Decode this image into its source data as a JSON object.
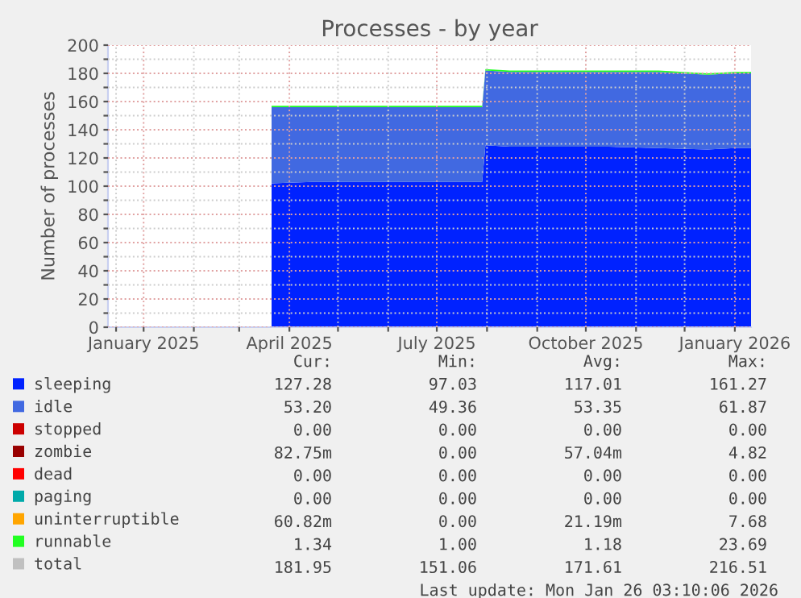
{
  "chart_data": {
    "type": "area",
    "stacked": true,
    "title": "Processes - by year",
    "ylabel": "Number of processes",
    "x": [
      "2025-03-21",
      "2025-04-15",
      "2025-05-15",
      "2025-06-15",
      "2025-07-15",
      "2025-07-29",
      "2025-07-31",
      "2025-08-15",
      "2025-09-15",
      "2025-10-15",
      "2025-11-15",
      "2025-12-15",
      "2026-01-01",
      "2026-01-11"
    ],
    "series": [
      {
        "name": "sleeping",
        "color": "#0022ff",
        "values": [
          102,
          103,
          103,
          103,
          103,
          103,
          129,
          128,
          128,
          128,
          127,
          126,
          127,
          127
        ]
      },
      {
        "name": "idle",
        "color": "#4169e1",
        "values": [
          54,
          53,
          53,
          53,
          53,
          53,
          53,
          53,
          53,
          53,
          54,
          53,
          53,
          53
        ]
      },
      {
        "name": "stopped",
        "color": "#cc0000",
        "values": [
          null,
          null,
          null,
          null,
          null,
          null,
          null,
          null,
          null,
          null,
          null,
          null,
          null,
          null
        ]
      },
      {
        "name": "zombie",
        "color": "#990000",
        "values": [
          null,
          null,
          null,
          null,
          null,
          null,
          null,
          null,
          null,
          null,
          null,
          null,
          null,
          null
        ]
      },
      {
        "name": "dead",
        "color": "#ff0000",
        "values": [
          null,
          null,
          null,
          null,
          null,
          null,
          null,
          null,
          null,
          null,
          null,
          null,
          null,
          null
        ]
      },
      {
        "name": "paging",
        "color": "#00aaaa",
        "values": [
          null,
          null,
          null,
          null,
          null,
          null,
          null,
          null,
          null,
          null,
          null,
          null,
          null,
          null
        ]
      },
      {
        "name": "uninterruptible",
        "color": "#ffa500",
        "values": [
          null,
          null,
          null,
          null,
          null,
          null,
          null,
          null,
          null,
          null,
          null,
          null,
          null,
          null
        ]
      },
      {
        "name": "runnable",
        "color": "#22ff22",
        "values": [
          1,
          1,
          1,
          1,
          1,
          1,
          1,
          1,
          1,
          1,
          1,
          1,
          1,
          1
        ]
      },
      {
        "name": "total",
        "color": "#c0c0c0",
        "values": [
          null,
          null,
          null,
          null,
          null,
          null,
          null,
          null,
          null,
          null,
          null,
          null,
          null,
          null
        ]
      }
    ],
    "xlim": [
      "2024-12-10",
      "2026-01-11"
    ],
    "xticks": [
      {
        "value": "2024-12-15",
        "label": null
      },
      {
        "value": "2025-01-01",
        "label": "January 2025"
      },
      {
        "value": "2025-02-01",
        "label": null
      },
      {
        "value": "2025-03-01",
        "label": null
      },
      {
        "value": "2025-04-01",
        "label": "April 2025"
      },
      {
        "value": "2025-05-01",
        "label": null
      },
      {
        "value": "2025-06-01",
        "label": null
      },
      {
        "value": "2025-07-01",
        "label": "July 2025"
      },
      {
        "value": "2025-08-01",
        "label": null
      },
      {
        "value": "2025-09-01",
        "label": null
      },
      {
        "value": "2025-10-01",
        "label": "October 2025"
      },
      {
        "value": "2025-11-01",
        "label": null
      },
      {
        "value": "2025-12-01",
        "label": null
      },
      {
        "value": "2026-01-01",
        "label": "January 2026"
      }
    ],
    "ylim": [
      0,
      200
    ],
    "yticks": [
      0,
      {
        "value": 10,
        "label": null
      },
      20,
      {
        "value": 30,
        "label": null
      },
      40,
      {
        "value": 50,
        "label": null
      },
      60,
      {
        "value": 70,
        "label": null
      },
      80,
      {
        "value": 90,
        "label": null
      },
      100,
      {
        "value": 110,
        "label": null
      },
      120,
      {
        "value": 130,
        "label": null
      },
      140,
      {
        "value": 150,
        "label": null
      },
      160,
      {
        "value": 170,
        "label": null
      },
      180,
      {
        "value": 190,
        "label": null
      },
      200
    ],
    "grid": true,
    "legend": "bottom",
    "annotations": [
      "Cur:",
      "Min:",
      "Avg:",
      "Max:",
      "127.28",
      "97.03",
      "117.01",
      "161.27",
      "53.20",
      "49.36",
      "53.35",
      "61.87",
      "0.00",
      "0.00",
      "0.00",
      "0.00",
      "82.75m",
      "0.00",
      "57.04m",
      "4.82",
      "0.00",
      "0.00",
      "0.00",
      "0.00",
      "0.00",
      "0.00",
      "0.00",
      "0.00",
      "60.82m",
      "0.00",
      "21.19m",
      "7.68",
      "1.34",
      "1.00",
      "1.18",
      "23.69",
      "181.95",
      "151.06",
      "171.61",
      "216.51",
      "Last update: Mon Jan 26 03:10:06 2026"
    ]
  }
}
